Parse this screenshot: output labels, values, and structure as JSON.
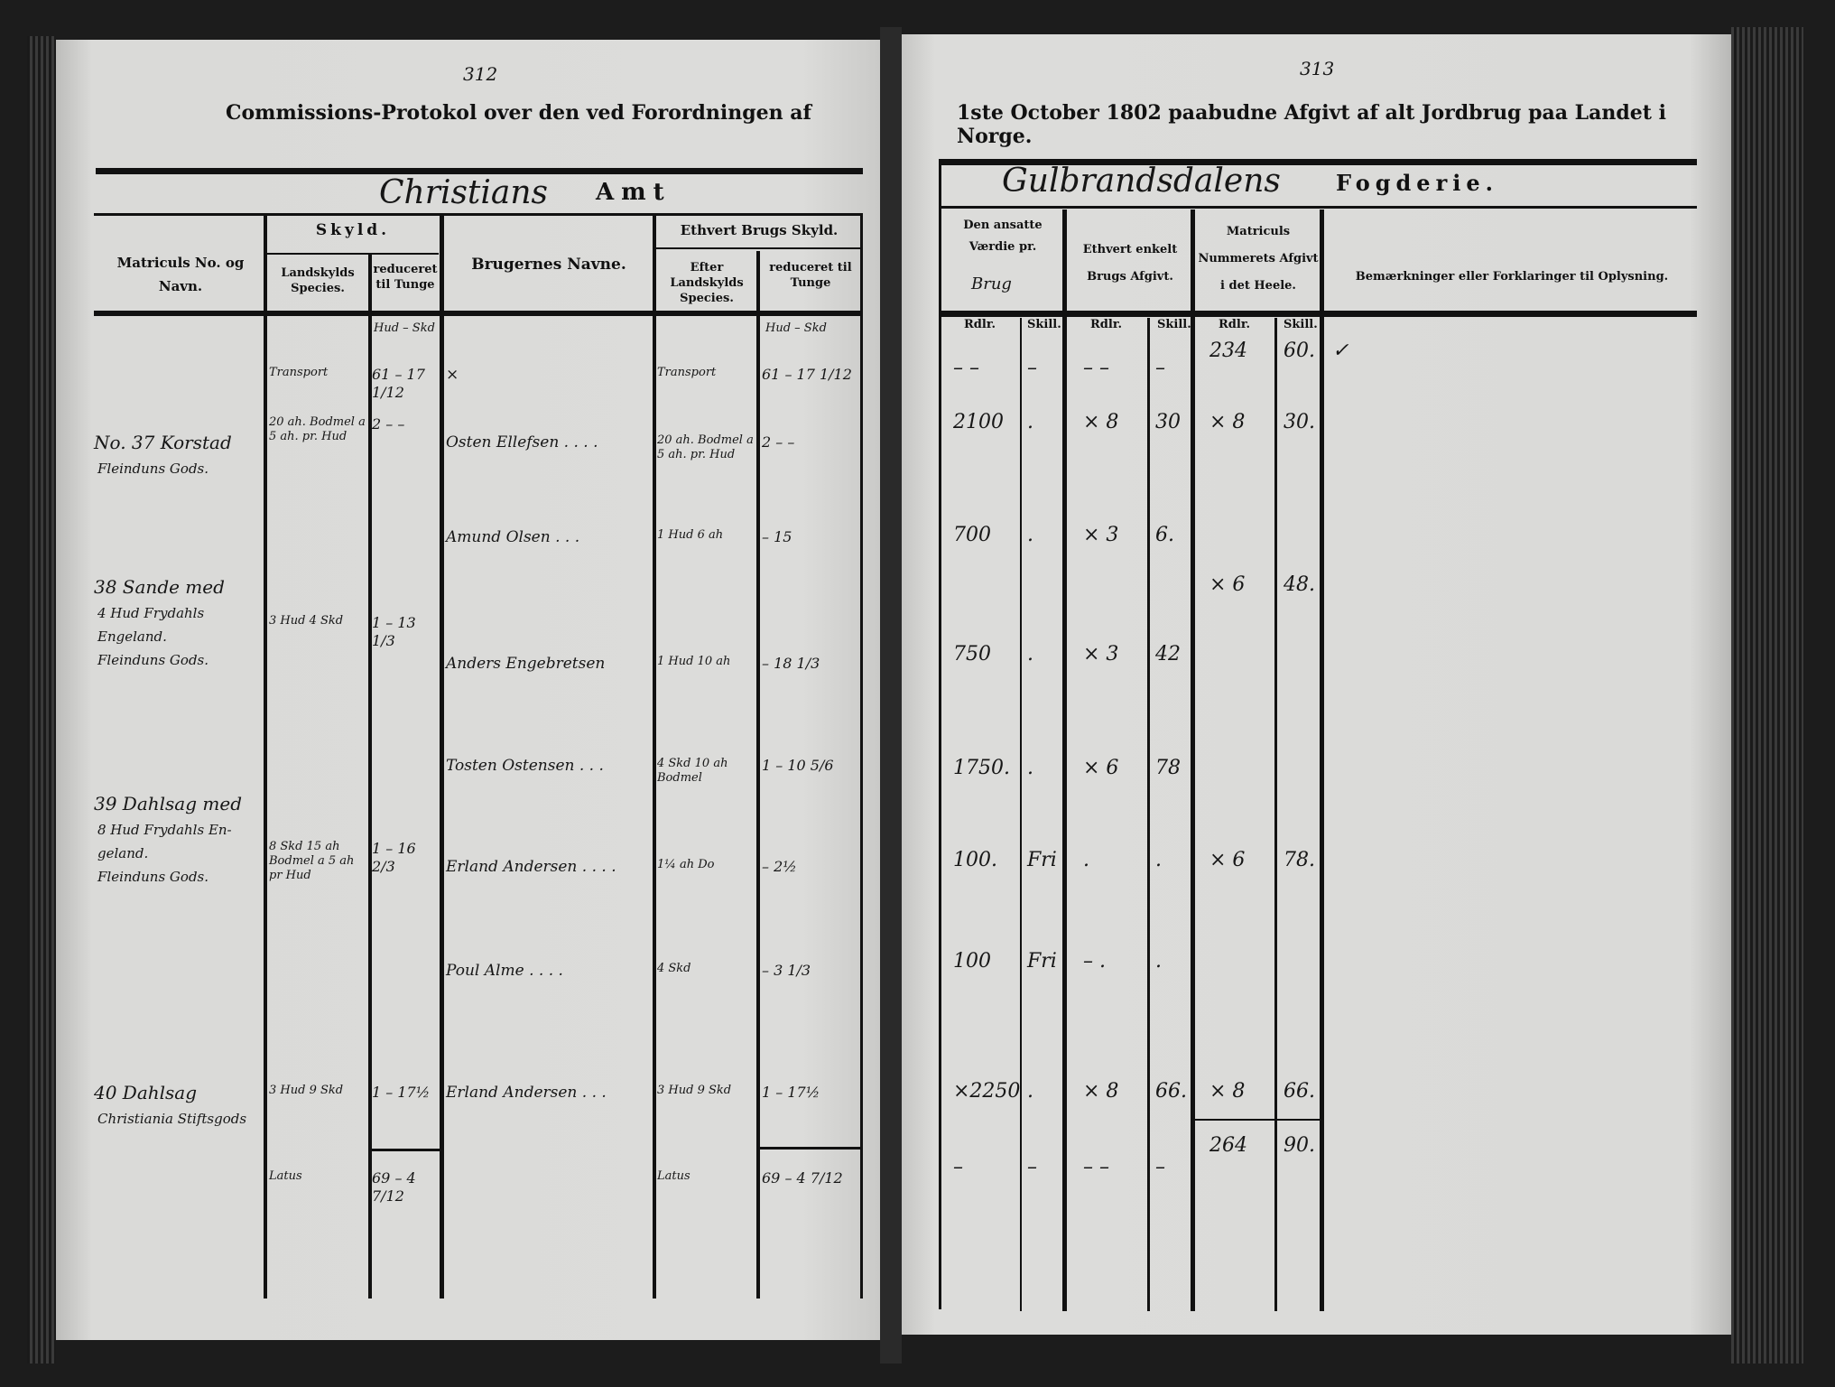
{
  "left_page": {
    "page_number": "312",
    "title": "Commissions-Protokol over den ved Forordningen af",
    "district": "Christians",
    "district_suffix": "Amt",
    "headers": {
      "matricul": "Matriculs No. og Navn.",
      "skyld": "Skyld.",
      "landskyld": "Landskylds Species.",
      "reduceret": "reduceret til Tunge",
      "brugernes_navne": "Brugernes Navne.",
      "ethvert_brugs_skyld": "Ethvert Brugs Skyld.",
      "efter_landskyld": "Efter Landskylds Species.",
      "reduceret2": "reduceret til Tunge",
      "units": "Hud – Skd"
    },
    "rows": [
      {
        "matricul": "",
        "landskyld": "Transport",
        "reduceret": "61 – 17 1/12",
        "bruger": "×",
        "efter": "Transport",
        "reduceret2": "61 – 17 1/12"
      },
      {
        "matricul": "No. 37 Korstad",
        "matricul2": "Fleinduns Gods.",
        "landskyld": "20 ah. Bodmel a 5 ah. pr. Hud",
        "reduceret": "2 – –",
        "bruger": "Osten Ellefsen . . . .",
        "efter": "20 ah. Bodmel a 5 ah. pr. Hud",
        "reduceret2": "2 – –"
      },
      {
        "bruger": "Amund Olsen . . .",
        "efter": "1 Hud 6 ah",
        "reduceret2": "– 15"
      },
      {
        "matricul": "38 Sande med",
        "matricul2": "4 Hud Frydahls",
        "matricul3": "Engeland.",
        "matricul4": "Fleinduns Gods.",
        "landskyld": "3 Hud 4 Skd",
        "reduceret": "1 – 13 1/3"
      },
      {
        "bruger": "Anders Engebretsen",
        "efter": "1 Hud 10 ah",
        "reduceret2": "– 18 1/3"
      },
      {
        "bruger": "Tosten Ostensen . . .",
        "efter": "4 Skd 10 ah Bodmel",
        "reduceret2": "1 – 10 5/6"
      },
      {
        "matricul": "39 Dahlsag med",
        "matricul2": "8 Hud Frydahls En-",
        "matricul3": "geland.",
        "matricul4": "Fleinduns Gods.",
        "landskyld": "8 Skd 15 ah Bodmel a 5 ah pr Hud",
        "reduceret": "1 – 16 2/3",
        "bruger": "Erland Andersen . . . .",
        "efter": "1¼ ah Do",
        "reduceret2": "– 2½"
      },
      {
        "bruger": "Poul Alme . . . .",
        "efter": "4 Skd",
        "reduceret2": "– 3 1/3"
      },
      {
        "matricul": "40 Dahlsag",
        "matricul2": "Christiania Stiftsgods",
        "landskyld": "3 Hud 9 Skd",
        "reduceret": "1 – 17½",
        "bruger": "Erland Andersen . . .",
        "efter": "3 Hud 9 Skd",
        "reduceret2": "1 – 17½"
      },
      {
        "landskyld": "Latus",
        "reduceret": "69 – 4 7/12",
        "efter": "Latus",
        "reduceret2": "69 – 4 7/12"
      }
    ]
  },
  "right_page": {
    "page_number": "313",
    "title": "1ste October 1802 paabudne Afgivt af alt Jordbrug paa Landet i Norge.",
    "district": "Gulbrandsdalens",
    "district_suffix": "Fogderie.",
    "headers": {
      "vaerdi": "Den ansatte Værdie pr.",
      "vaerdi_hand": "Brug",
      "brugs_afgivt": "Ethvert enkelt Brugs Afgivt.",
      "matricul_afgivt": "Matriculs Nummerets Afgivt i det Heele.",
      "bemaerkninger": "Bemærkninger eller Forklaringer til Oplysning.",
      "rdlr": "Rdlr.",
      "skill": "Skill."
    },
    "rows": [
      {
        "v_rdl": "– –",
        "v_sk": "–",
        "b_rdl": "– –",
        "b_sk": "–",
        "m_rdl": "234",
        "m_sk": "60.",
        "note": "✓"
      },
      {
        "v_rdl": "2100",
        "v_sk": ".",
        "b_rdl": "× 8",
        "b_sk": "30",
        "m_rdl": "× 8",
        "m_sk": "30."
      },
      {
        "v_rdl": "700",
        "v_sk": ".",
        "b_rdl": "× 3",
        "b_sk": "6."
      },
      {
        "m_rdl": "× 6",
        "m_sk": "48."
      },
      {
        "v_rdl": "750",
        "v_sk": ".",
        "b_rdl": "× 3",
        "b_sk": "42"
      },
      {
        "v_rdl": "1750.",
        "v_sk": ".",
        "b_rdl": "× 6",
        "b_sk": "78"
      },
      {
        "v_rdl": "100.",
        "v_sk": "Fri",
        "b_rdl": ".",
        "b_sk": ".",
        "m_rdl": "× 6",
        "m_sk": "78."
      },
      {
        "v_rdl": "100",
        "v_sk": "Fri",
        "b_rdl": "– .",
        "b_sk": "."
      },
      {
        "v_rdl": "×2250",
        "v_sk": ".",
        "b_rdl": "× 8",
        "b_sk": "66.",
        "m_rdl": "× 8",
        "m_sk": "66."
      },
      {
        "v_rdl": "–",
        "v_sk": "–",
        "b_rdl": "– –",
        "b_sk": "–",
        "m_rdl": "264",
        "m_sk": "90."
      }
    ]
  }
}
